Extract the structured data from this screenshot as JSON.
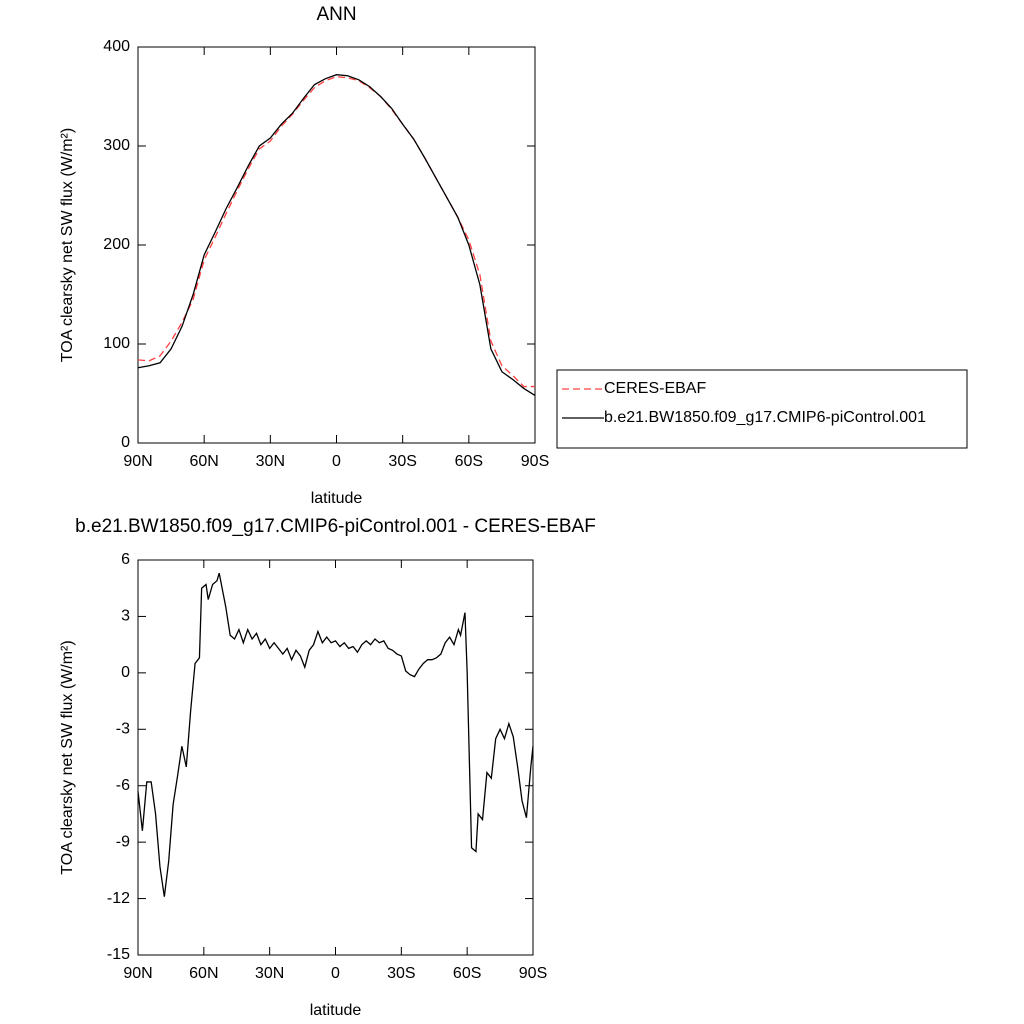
{
  "chart_data": [
    {
      "type": "line",
      "title": "ANN",
      "x_label": "latitude",
      "y_label": "TOA clearsky net SW flux (W/m²)",
      "xlim": [
        90,
        -90
      ],
      "xticks": [
        {
          "value": 90,
          "label": "90N"
        },
        {
          "value": 60,
          "label": "60N"
        },
        {
          "value": 30,
          "label": "30N"
        },
        0,
        {
          "value": -30,
          "label": "30S"
        },
        {
          "value": -60,
          "label": "60S"
        },
        {
          "value": -90,
          "label": "90S"
        }
      ],
      "ylim": [
        0,
        400
      ],
      "yticks": [
        0,
        100,
        200,
        300,
        400
      ],
      "legend": "right",
      "x": [
        90,
        85,
        80,
        75,
        70,
        65,
        60,
        55,
        50,
        45,
        40,
        35,
        30,
        25,
        20,
        15,
        10,
        5,
        0,
        -5,
        -10,
        -15,
        -20,
        -25,
        -30,
        -35,
        -40,
        -45,
        -50,
        -55,
        -60,
        -65,
        -70,
        -75,
        -80,
        -85,
        -90
      ],
      "series": [
        {
          "name": "CERES-EBAF",
          "color": "#ff4040",
          "dash": true,
          "values": [
            84,
            83,
            88,
            103,
            122,
            145,
            185,
            208,
            232,
            255,
            277,
            297,
            305,
            320,
            332,
            346,
            359,
            366,
            370,
            369,
            366,
            359,
            350,
            337,
            322,
            307,
            288,
            268,
            248,
            228,
            205,
            170,
            103,
            78,
            68,
            57,
            57
          ]
        },
        {
          "name": "b.e21.BW1850.f09_g17.CMIP6-piControl.001",
          "color": "#000000",
          "dash": false,
          "values": [
            76,
            78,
            81,
            95,
            118,
            150,
            190,
            213,
            237,
            258,
            280,
            300,
            308,
            322,
            333,
            348,
            362,
            368,
            372,
            371,
            367,
            360,
            350,
            338,
            322,
            307,
            288,
            268,
            248,
            228,
            200,
            160,
            95,
            72,
            64,
            55,
            48
          ]
        }
      ]
    },
    {
      "type": "line",
      "title": "b.e21.BW1850.f09_g17.CMIP6-piControl.001 - CERES-EBAF",
      "x_label": "latitude",
      "y_label": "TOA clearsky net SW flux (W/m²)",
      "xlim": [
        90,
        -90
      ],
      "xticks": [
        {
          "value": 90,
          "label": "90N"
        },
        {
          "value": 60,
          "label": "60N"
        },
        {
          "value": 30,
          "label": "30N"
        },
        0,
        {
          "value": -30,
          "label": "30S"
        },
        {
          "value": -60,
          "label": "60S"
        },
        {
          "value": -90,
          "label": "90S"
        }
      ],
      "ylim": [
        -15,
        6
      ],
      "yticks": [
        -15,
        -12,
        -9,
        -6,
        -3,
        0,
        3,
        6
      ],
      "x": [
        90,
        88,
        86,
        84,
        82,
        80,
        78,
        76,
        74,
        72,
        70,
        68,
        66,
        64,
        62,
        61,
        59,
        58,
        56,
        54,
        53,
        50,
        48,
        46,
        44,
        42,
        40,
        38,
        36,
        34,
        32,
        30,
        28,
        26,
        24,
        22,
        20,
        18,
        16,
        14,
        12,
        10,
        8,
        6,
        4,
        2,
        0,
        -2,
        -4,
        -6,
        -8,
        -10,
        -12,
        -14,
        -16,
        -18,
        -20,
        -22,
        -24,
        -26,
        -28,
        -30,
        -32,
        -34,
        -36,
        -38,
        -40,
        -42,
        -44,
        -46,
        -48,
        -50,
        -52,
        -54,
        -56,
        -57,
        -59,
        -60,
        -62,
        -64,
        -65,
        -67,
        -69,
        -71,
        -73,
        -75,
        -77,
        -79,
        -81,
        -83,
        -85,
        -87,
        -89,
        -90
      ],
      "series": [
        {
          "color": "#000000",
          "dash": false,
          "values": [
            -6.3,
            -8.4,
            -5.8,
            -5.8,
            -7.5,
            -10.3,
            -11.9,
            -10,
            -7,
            -5.5,
            -3.9,
            -5,
            -2,
            0.5,
            0.8,
            4.5,
            4.7,
            3.9,
            4.7,
            4.9,
            5.3,
            3.5,
            2,
            1.8,
            2.3,
            1.6,
            2.3,
            1.8,
            2.1,
            1.5,
            1.8,
            1.3,
            1.6,
            1.3,
            1.0,
            1.3,
            0.7,
            1.2,
            0.9,
            0.3,
            1.2,
            1.5,
            2.2,
            1.6,
            1.9,
            1.6,
            1.7,
            1.4,
            1.6,
            1.3,
            1.4,
            1.1,
            1.5,
            1.7,
            1.5,
            1.8,
            1.6,
            1.7,
            1.3,
            1.2,
            1.0,
            0.9,
            0.1,
            -0.1,
            -0.2,
            0.2,
            0.5,
            0.7,
            0.7,
            0.8,
            1.0,
            1.6,
            1.9,
            1.5,
            2.3,
            2.0,
            3.2,
            0,
            -9.3,
            -9.5,
            -7.5,
            -7.8,
            -5.3,
            -5.6,
            -3.5,
            -3.0,
            -3.5,
            -2.7,
            -3.4,
            -5,
            -6.8,
            -7.7,
            -5,
            -3.9
          ]
        }
      ]
    }
  ]
}
